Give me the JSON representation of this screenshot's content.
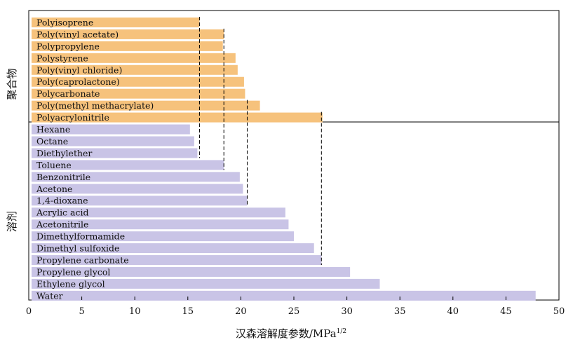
{
  "chart_data": {
    "type": "bar",
    "orientation": "horizontal",
    "xlabel": "汉森溶解度参数/MPa",
    "xlabel_superscript": "1/2",
    "xlim": [
      0,
      50
    ],
    "xticks": [
      0,
      5,
      10,
      15,
      20,
      25,
      30,
      35,
      40,
      45,
      50
    ],
    "grid": false,
    "groups": [
      {
        "name": "聚合物",
        "color": "#f6c27c",
        "categories": [
          "Polyisoprene",
          "Poly(vinyl acetate)",
          "Polypropylene",
          "Polystyrene",
          "Poly(vinyl chloride)",
          "Poly(caprolactone)",
          "Polycarbonate",
          "Poly(methyl methacrylate)",
          "Polyacrylonitrile"
        ],
        "values": [
          16.1,
          18.4,
          18.3,
          19.5,
          19.7,
          20.3,
          20.4,
          21.8,
          27.7
        ]
      },
      {
        "name": "溶剂",
        "color": "#c9c4e6",
        "categories": [
          "Hexane",
          "Octane",
          "Diethylether",
          "Toluene",
          "Benzonitrile",
          "Acetone",
          "1,4-dioxane",
          "Acrylic acid",
          "Acetonitrile",
          "Dimethylformamide",
          "Dimethyl sulfoxide",
          "Propylene carbonate",
          "Propylene glycol",
          "Ethylene glycol",
          "Water"
        ],
        "values": [
          15.2,
          15.6,
          15.9,
          18.4,
          19.9,
          20.2,
          20.6,
          24.2,
          24.5,
          25.0,
          26.9,
          27.6,
          30.3,
          33.1,
          47.8
        ]
      }
    ],
    "reference_lines": [
      16.1,
      18.4,
      20.6,
      27.6
    ]
  }
}
